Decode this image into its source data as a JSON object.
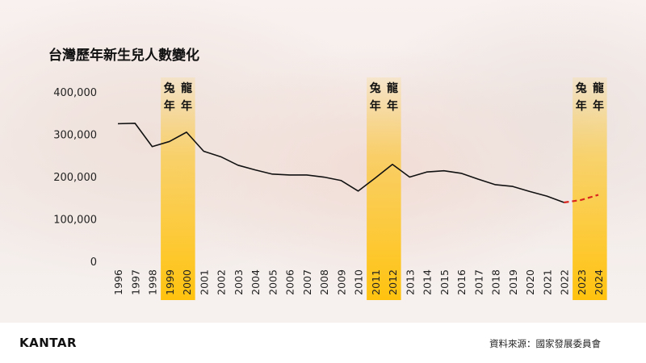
{
  "chart_data": {
    "type": "line",
    "title": "台灣歷年新生兒人數變化",
    "x": [
      1996,
      1997,
      1998,
      1999,
      2000,
      2001,
      2002,
      2003,
      2004,
      2005,
      2006,
      2007,
      2008,
      2009,
      2010,
      2011,
      2012,
      2013,
      2014,
      2015,
      2016,
      2017,
      2018,
      2019,
      2020,
      2021,
      2022,
      2023,
      2024
    ],
    "series": [
      {
        "values": [
          325000,
          326000,
          271000,
          283000,
          305000,
          260000,
          247000,
          227000,
          216000,
          206000,
          204000,
          204000,
          199000,
          191000,
          166000,
          197000,
          229000,
          199000,
          211000,
          214000,
          208000,
          194000,
          181000,
          177000,
          165000,
          154000,
          139000,
          null,
          null
        ],
        "color": "#111111"
      },
      {
        "values": [
          null,
          null,
          null,
          null,
          null,
          null,
          null,
          null,
          null,
          null,
          null,
          null,
          null,
          null,
          null,
          null,
          null,
          null,
          null,
          null,
          null,
          null,
          null,
          null,
          null,
          null,
          139000,
          145000,
          157000
        ],
        "color": "#d9251d",
        "dashed": true
      }
    ],
    "yticks": [
      "0",
      "100,000",
      "200,000",
      "300,000",
      "400,000"
    ],
    "ylim": [
      0,
      400000
    ],
    "highlights": [
      {
        "years": [
          1999,
          2000
        ],
        "labels": [
          "兔年",
          "龍年"
        ]
      },
      {
        "years": [
          2011,
          2012
        ],
        "labels": [
          "兔年",
          "龍年"
        ]
      },
      {
        "years": [
          2023,
          2024
        ],
        "labels": [
          "兔年",
          "龍年"
        ]
      }
    ],
    "highlight_color": "#ffc20e"
  },
  "footer": {
    "logo": "KANTAR",
    "source": "資料來源：國家發展委員會"
  }
}
